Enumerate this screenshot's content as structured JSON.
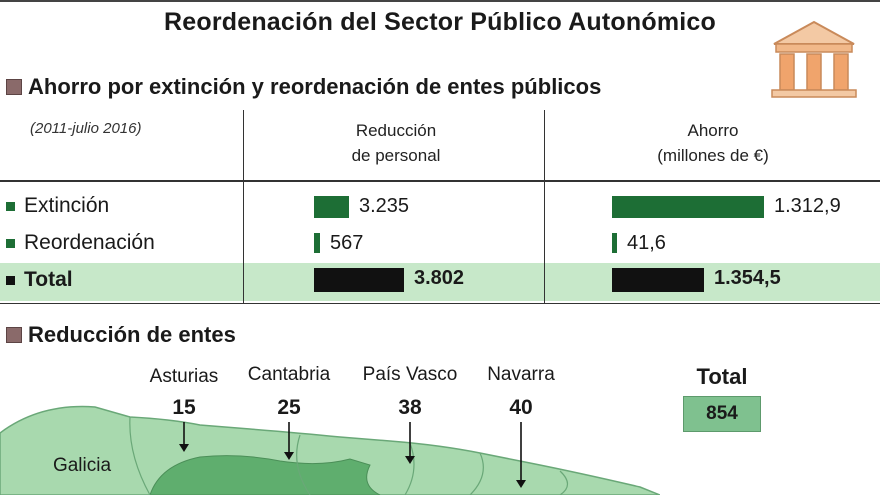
{
  "title": "Reordenación del Sector Público Autonómico",
  "section1": {
    "heading": "Ahorro por extinción y reordenación de entes públicos",
    "period": "(2011-julio 2016)",
    "col_personal": [
      "Reducción",
      "de personal"
    ],
    "col_ahorro": [
      "Ahorro",
      "(millones de €)"
    ]
  },
  "section2": {
    "heading": "Reducción de entes",
    "total_label": "Total",
    "total_value": "854"
  },
  "colors": {
    "green_bar": "#1d6e35",
    "black_bar": "#111111",
    "total_band": "#c7e8c9",
    "map_light": "#a8d9ae",
    "map_dark": "#5fae6e",
    "total_box": "#7fc18f"
  },
  "icons": [
    "building-columns-icon"
  ],
  "chart_data": [
    {
      "type": "bar",
      "orientation": "horizontal",
      "title": "Ahorro por extinción y reordenación de entes públicos",
      "categories": [
        "Extinción",
        "Reordenación",
        "Total"
      ],
      "series": [
        {
          "name": "Reducción de personal",
          "values": [
            3235,
            567,
            3802
          ],
          "labels": [
            "3.235",
            "567",
            "3.802"
          ]
        },
        {
          "name": "Ahorro (millones de €)",
          "values": [
            1312.9,
            41.6,
            1354.5
          ],
          "labels": [
            "1.312,9",
            "41,6",
            "1.354,5"
          ]
        }
      ]
    },
    {
      "type": "table",
      "title": "Reducción de entes",
      "regions": [
        {
          "name": "Asturias",
          "label": "15",
          "value": 15
        },
        {
          "name": "Cantabria",
          "label": "25",
          "value": 25
        },
        {
          "name": "País Vasco",
          "label": "38",
          "value": 38
        },
        {
          "name": "Navarra",
          "label": "40",
          "value": 40
        },
        {
          "name": "Galicia",
          "label": "",
          "value": null
        }
      ]
    }
  ]
}
